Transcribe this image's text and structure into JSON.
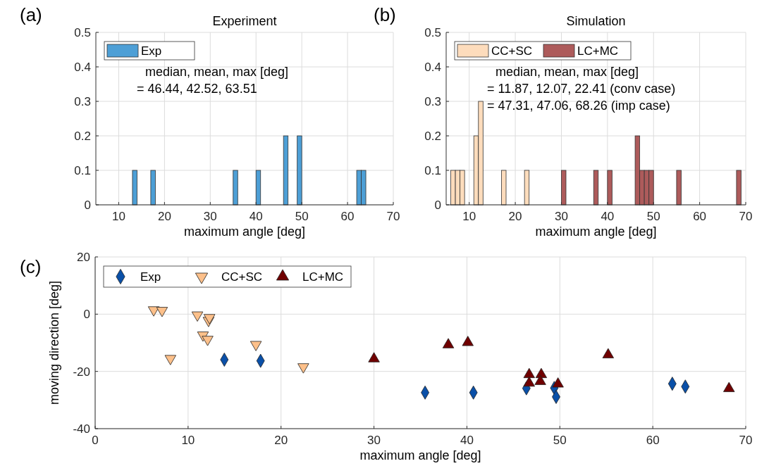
{
  "chart_data": [
    {
      "type": "histogram",
      "title": "Experiment",
      "xlabel": "maximum angle [deg]",
      "annotations": [
        "(a)",
        "median, mean, max [deg]",
        "= 46.44, 42.52, 63.51"
      ],
      "bins": [
        5,
        6,
        7,
        8,
        9,
        10,
        11,
        12,
        13,
        14,
        15,
        16,
        17,
        18,
        19,
        20,
        21,
        22,
        23,
        24,
        25,
        26,
        27,
        28,
        29,
        30,
        31,
        32,
        33,
        34,
        35,
        36,
        37,
        38,
        39,
        40,
        41,
        42,
        43,
        44,
        45,
        46,
        47,
        48,
        49,
        50,
        51,
        52,
        53,
        54,
        55,
        56,
        57,
        58,
        59,
        60,
        61,
        62,
        63,
        64,
        65,
        66,
        67,
        68,
        69,
        70
      ],
      "series": [
        {
          "name": "Exp",
          "color": "#4d9fd6",
          "values": [
            0,
            0,
            0,
            0,
            0,
            0,
            0,
            0,
            0.1,
            0,
            0,
            0,
            0.1,
            0,
            0,
            0,
            0,
            0,
            0,
            0,
            0,
            0,
            0,
            0,
            0,
            0,
            0,
            0,
            0,
            0,
            0.1,
            0,
            0,
            0,
            0,
            0.1,
            0,
            0,
            0,
            0,
            0,
            0.2,
            0,
            0,
            0.2,
            0,
            0,
            0,
            0,
            0,
            0,
            0,
            0,
            0,
            0,
            0,
            0,
            0.1,
            0.1,
            0,
            0,
            0,
            0,
            0,
            0
          ]
        }
      ],
      "xlim": [
        5,
        70
      ],
      "xticks": [
        10,
        20,
        30,
        40,
        50,
        60,
        70
      ],
      "ylim": [
        0,
        0.5
      ],
      "yticks": [
        0,
        0.1,
        0.2,
        0.3,
        0.4,
        0.5
      ],
      "grid": true,
      "legend": "top left"
    },
    {
      "type": "histogram",
      "title": "Simulation",
      "xlabel": "maximum angle [deg]",
      "annotations": [
        "(b)",
        "median, mean, max [deg]",
        "= 11.87, 12.07, 22.41 (conv case)",
        "= 47.31, 47.06, 68.26 (imp case)"
      ],
      "bins": [
        5,
        6,
        7,
        8,
        9,
        10,
        11,
        12,
        13,
        14,
        15,
        16,
        17,
        18,
        19,
        20,
        21,
        22,
        23,
        24,
        25,
        26,
        27,
        28,
        29,
        30,
        31,
        32,
        33,
        34,
        35,
        36,
        37,
        38,
        39,
        40,
        41,
        42,
        43,
        44,
        45,
        46,
        47,
        48,
        49,
        50,
        51,
        52,
        53,
        54,
        55,
        56,
        57,
        58,
        59,
        60,
        61,
        62,
        63,
        64,
        65,
        66,
        67,
        68,
        69,
        70
      ],
      "series": [
        {
          "name": "CC+SC",
          "color": "#fddcbc",
          "values": [
            0,
            0.1,
            0.1,
            0.1,
            0,
            0,
            0.2,
            0.3,
            0,
            0,
            0,
            0,
            0.1,
            0,
            0,
            0,
            0,
            0.1,
            0,
            0,
            0,
            0,
            0,
            0,
            0,
            0,
            0,
            0,
            0,
            0,
            0,
            0,
            0,
            0,
            0,
            0,
            0,
            0,
            0,
            0,
            0,
            0,
            0,
            0,
            0,
            0,
            0,
            0,
            0,
            0,
            0,
            0,
            0,
            0,
            0,
            0,
            0,
            0,
            0,
            0,
            0,
            0,
            0,
            0,
            0
          ]
        },
        {
          "name": "LC+MC",
          "color": "#ad5b5b",
          "values": [
            0,
            0,
            0,
            0,
            0,
            0,
            0,
            0,
            0,
            0,
            0,
            0,
            0,
            0,
            0,
            0,
            0,
            0,
            0,
            0,
            0,
            0,
            0,
            0,
            0,
            0.1,
            0,
            0,
            0,
            0,
            0,
            0,
            0.1,
            0,
            0,
            0.1,
            0,
            0,
            0,
            0,
            0,
            0.2,
            0.1,
            0.1,
            0.1,
            0,
            0,
            0,
            0,
            0,
            0.1,
            0,
            0,
            0,
            0,
            0,
            0,
            0,
            0,
            0,
            0,
            0,
            0,
            0.1,
            0
          ]
        }
      ],
      "xlim": [
        5,
        70
      ],
      "xticks": [
        10,
        20,
        30,
        40,
        50,
        60,
        70
      ],
      "ylim": [
        0,
        0.5
      ],
      "yticks": [
        0,
        0.1,
        0.2,
        0.3,
        0.4,
        0.5
      ],
      "grid": true,
      "legend": "top left"
    },
    {
      "type": "scatter",
      "xlabel": "maximum angle [deg]",
      "ylabel": "moving direction [deg]",
      "annotations": [
        "(c)"
      ],
      "series": [
        {
          "name": "Exp",
          "color": "#0a50a8",
          "marker": "diamond",
          "x": [
            13.9,
            17.8,
            35.5,
            40.7,
            46.4,
            49.4,
            49.6,
            62.1,
            63.5
          ],
          "values": [
            -15.9,
            -16.3,
            -27.4,
            -27.4,
            -25.9,
            -25.8,
            -28.9,
            -24.3,
            -25.3
          ]
        },
        {
          "name": "CC+SC",
          "color": "#fdc08a",
          "marker": "triangle_down",
          "x": [
            6.3,
            7.2,
            11.0,
            12.2,
            12.3,
            11.6,
            12.1,
            8.1,
            17.3,
            22.4
          ],
          "values": [
            1.5,
            1.3,
            -0.3,
            -2.2,
            -1.2,
            -7.3,
            -8.8,
            -15.5,
            -10.6,
            -18.4
          ]
        },
        {
          "name": "LC+MC",
          "color": "#700000",
          "marker": "triangle",
          "x": [
            30.0,
            38.0,
            40.1,
            55.2,
            46.7,
            48.0,
            46.7,
            47.9,
            49.8,
            68.2
          ],
          "values": [
            -15.6,
            -10.7,
            -9.9,
            -14.2,
            -21.1,
            -21.1,
            -24.1,
            -23.5,
            -24.4,
            -26.0
          ]
        }
      ],
      "xlim": [
        0,
        70
      ],
      "xticks": [
        0,
        10,
        20,
        30,
        40,
        50,
        60,
        70
      ],
      "ylim": [
        -40,
        20
      ],
      "yticks": [
        -40,
        -20,
        0,
        20
      ],
      "grid": true,
      "legend": "top left"
    }
  ]
}
